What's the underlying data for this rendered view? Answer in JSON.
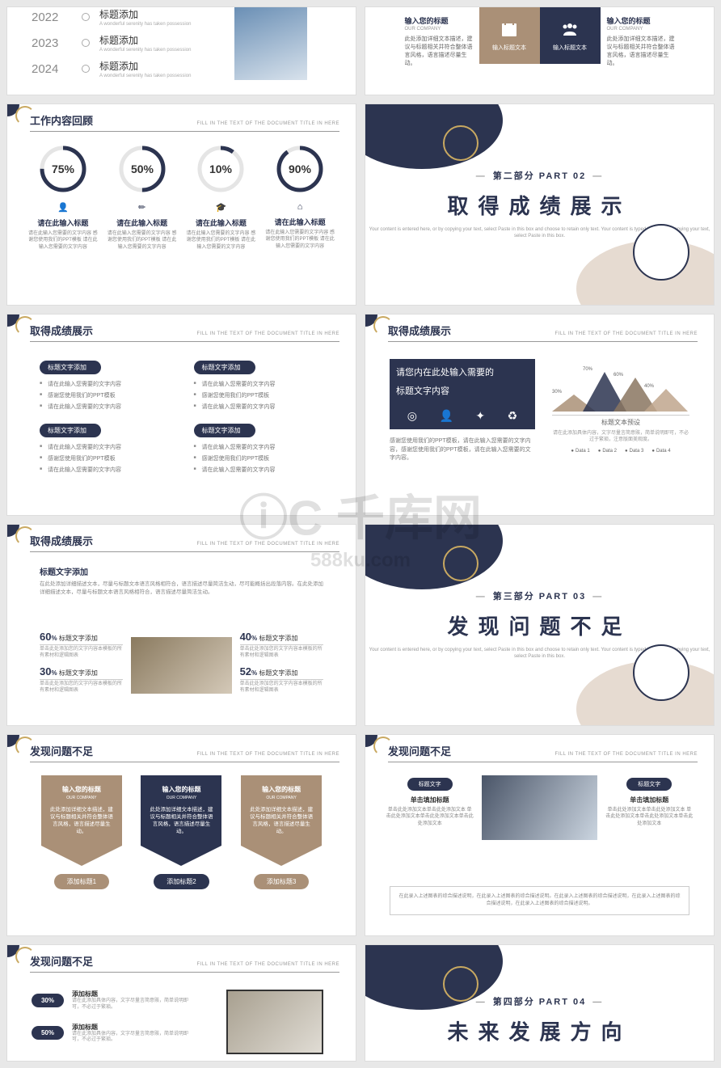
{
  "subtitle": "FILL IN THE TEXT OF THE DOCUMENT TITLE IN HERE",
  "watermark": {
    "main": "千库网",
    "sub": "588ku.com"
  },
  "colors": {
    "navy": "#2c3450",
    "tan": "#aa9077",
    "gold": "#c9a961",
    "grey": "#888888"
  },
  "s1": {
    "years": [
      "2022",
      "2023",
      "2024"
    ],
    "title": "标题添加",
    "sub": "A wonderful serenity has taken possession"
  },
  "s2": {
    "label": "输入您的标题",
    "sub": "OUR COMPANY",
    "desc": "此处添加详细文本描述，建议与标题相关并符合整体语言风格，语言描述尽量生动。",
    "box1": "输入标题文本",
    "box2": "输入标题文本"
  },
  "s3": {
    "header": "工作内容回顾",
    "items": [
      {
        "pct": "75%",
        "v": 75,
        "icon": "👤",
        "title": "请在此输入标题"
      },
      {
        "pct": "50%",
        "v": 50,
        "icon": "✏",
        "title": "请在此输入标题"
      },
      {
        "pct": "10%",
        "v": 10,
        "icon": "🎓",
        "title": "请在此输入标题"
      },
      {
        "pct": "90%",
        "v": 90,
        "icon": "⌂",
        "title": "请在此输入标题"
      }
    ],
    "desc": "请在此输入您需要的文字内容 感谢您使用我们的PPT模板 请在此输入您需要的文字内容"
  },
  "d2": {
    "part": "第二部分  PART 02",
    "title": "取得成绩展示",
    "sub": "Your content is entered here, or by copying your text, select Paste in this box and choose to retain only text. Your content is typed here, or by copying your text, select Paste in this box."
  },
  "s5": {
    "header": "取得成绩展示",
    "badge": "标题文字添加",
    "li1": "请在此输入您需要的文字内容",
    "li2": "感谢您使用我们的PPT模板",
    "li3": "请在此输入您需要的文字内容"
  },
  "s6": {
    "header": "取得成绩展示",
    "title": "请您内在此处输入需要的\n标题文字内容",
    "title1": "请您内在此处输入需要的",
    "title2": "标题文字内容",
    "desc": "感谢您使用我们的PPT模板，请在此输入您需要的文字内容，感谢您使用我们的PPT模板，请在此输入您需要的文字内容。",
    "peaks": [
      {
        "label": "30%",
        "h": 30,
        "c": "#aa9077"
      },
      {
        "label": "70%",
        "h": 70,
        "c": "#2c3450"
      },
      {
        "label": "60%",
        "h": 60,
        "c": "#8a7560"
      },
      {
        "label": "40%",
        "h": 40,
        "c": "#c0a68d"
      }
    ],
    "chartTitle": "标题文本预设",
    "chartDesc": "请在此添加具体内容，文字尽量言简意赅，简单说明即可，不必过于繁琐，注意版面美观度。",
    "legend": [
      "Data 1",
      "Data 2",
      "Data 3",
      "Data 4"
    ]
  },
  "s7": {
    "header": "取得成绩展示",
    "topTitle": "标题文字添加",
    "topDesc": "在此处添加详细描述文本，尽量与标题文本语言风格相符合，语言描述尽量简洁生动，尽可能概括出段落内容。在此处添加详细描述文本，尽量与标题文本语言风格相符合，语言描述尽量简洁生动。",
    "left": [
      {
        "n": "60",
        "t": "标题文字添加",
        "d": "单击此处添加您的文字内容本模板的所有素材和逻辑图表"
      },
      {
        "n": "30",
        "t": "标题文字添加",
        "d": "单击此处添加您的文字内容本模板的所有素材和逻辑图表"
      }
    ],
    "right": [
      {
        "n": "40",
        "t": "标题文字添加",
        "d": "单击此处添加您的文字内容本模板的所有素材和逻辑图表"
      },
      {
        "n": "52",
        "t": "标题文字添加",
        "d": "单击此处添加您的文字内容本模板的所有素材和逻辑图表"
      }
    ]
  },
  "d3": {
    "part": "第三部分  PART 03",
    "title": "发现问题不足"
  },
  "s9": {
    "header": "发现问题不足",
    "cardTitle": "输入您的标题",
    "cardSub": "OUR COMPANY",
    "cardDesc": "此处添加详细文本描述，建议与标题相关并符合整体语言风格，语言描述尽量生动。",
    "labels": [
      "添加标题1",
      "添加标题2",
      "添加标题3"
    ]
  },
  "s10": {
    "header": "发现问题不足",
    "pill": "标题文字",
    "sub": "单击填加标题",
    "desc": "单击此处添加文本单击此处添加文本 单击此处添加文本单击此处添加文本单击此处添加文本",
    "footer": "在此录入上述图表的综合描述说明，在此录入上述图表的综合描述说明。在此录入上述图表的综合描述说明，在此录入上述图表的综合描述说明，在此录入上述图表的综合描述说明。"
  },
  "s11": {
    "header": "发现问题不足",
    "items": [
      {
        "p": "30%",
        "t": "添加标题",
        "d": "请在此添加具体内容，文字尽量言简意赅，简单说明即可，不必过于繁琐。"
      },
      {
        "p": "50%",
        "t": "添加标题",
        "d": "请在此添加具体内容，文字尽量言简意赅，简单说明即可，不必过于繁琐。"
      }
    ]
  },
  "d4": {
    "part": "第四部分  PART 04",
    "title": "未来发展方向"
  }
}
